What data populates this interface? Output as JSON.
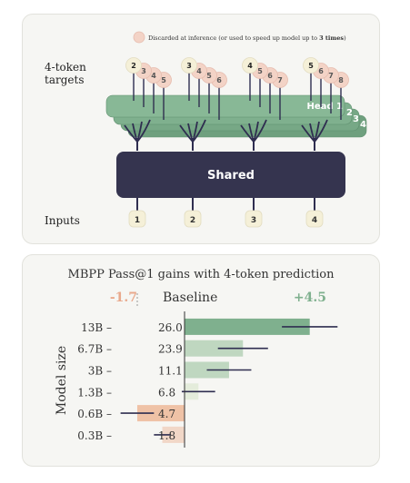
{
  "diagram": {
    "note": "Discarded at inference (or used to speed up model up to 3 times)",
    "note_prefix": "Discarded at inference (or used to speed up model up to ",
    "note_bold": "3 times",
    "note_suffix": ")",
    "targets_label_1": "4-token",
    "targets_label_2": "targets",
    "inputs_label": "Inputs",
    "shared_label": "Shared",
    "head_label": "Head 1",
    "head_numbers": [
      "2",
      "3",
      "4"
    ],
    "inputs": [
      "1",
      "2",
      "3",
      "4"
    ],
    "targets": [
      [
        "2",
        "3",
        "4",
        "5"
      ],
      [
        "3",
        "4",
        "5",
        "6"
      ],
      [
        "4",
        "5",
        "6",
        "7"
      ],
      [
        "5",
        "6",
        "7",
        "8"
      ]
    ],
    "colors": {
      "head": "#7fb08e",
      "shared": "#35344f",
      "token_first": "#f5f0d8",
      "token_rest": "#f3d3c6"
    }
  },
  "chart_data": {
    "type": "bar",
    "title": "MBPP Pass@1  gains with 4-token prediction",
    "left_extreme": "-1.7",
    "baseline_label": "Baseline",
    "right_extreme": "+4.5",
    "ylabel": "Model size",
    "categories": [
      "13B",
      "6.7B",
      "3B",
      "1.3B",
      "0.6B",
      "0.3B"
    ],
    "baseline": [
      26.0,
      23.9,
      11.1,
      6.8,
      4.7,
      1.8
    ],
    "baseline_labels": [
      "26.0",
      "23.9",
      "11.1",
      "6.8",
      "4.7",
      "1.8"
    ],
    "gains": [
      4.5,
      2.1,
      1.6,
      0.5,
      -1.7,
      -0.8
    ],
    "error": [
      1.0,
      0.9,
      0.8,
      0.6,
      0.6,
      0.3
    ],
    "xlim": [
      -1.7,
      4.5
    ],
    "colors": {
      "positive": [
        "#7fb08e",
        "#bfd7c0",
        "#bfd7c0",
        "#e4ecdb"
      ],
      "negative": [
        "#efc2a6",
        "#f1d7c7"
      ],
      "error": "#2f2e50",
      "left_extreme": "#e9a98c",
      "right_extreme": "#7fb08e"
    }
  }
}
